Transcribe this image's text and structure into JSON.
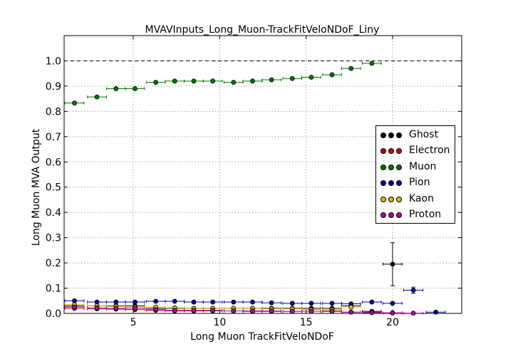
{
  "chart_data": {
    "type": "scatter",
    "title": "MVAVInputs_Long_Muon-TrackFitVeloNDoF_Liny",
    "xlabel": "Long Muon TrackFitVeloNDoF",
    "ylabel": "Long Muon MVA Output",
    "xlim": [
      1,
      24
    ],
    "ylim": [
      0,
      1.1
    ],
    "xticks": [
      5,
      10,
      15,
      20
    ],
    "yticks": [
      0.0,
      0.1,
      0.2,
      0.3,
      0.4,
      0.5,
      0.6,
      0.7,
      0.8,
      0.9,
      1.0
    ],
    "grid": true,
    "reference_line": 1.0,
    "legend_position": "center-right",
    "series": [
      {
        "name": "Ghost",
        "color": "#000000",
        "x": [
          1.6,
          2.9,
          4.0,
          5.1,
          6.3,
          7.4,
          8.5,
          9.6,
          10.8,
          11.9,
          13.0,
          14.2,
          15.3,
          16.5,
          17.6,
          18.8,
          20.0
        ],
        "y": [
          0.03,
          0.03,
          0.03,
          0.03,
          0.02,
          0.02,
          0.02,
          0.02,
          0.02,
          0.02,
          0.02,
          0.02,
          0.02,
          0.02,
          0.03,
          0.008,
          0.195
        ],
        "yerr": [
          0,
          0,
          0,
          0,
          0,
          0,
          0,
          0,
          0,
          0,
          0,
          0,
          0,
          0,
          0,
          0,
          0.085
        ]
      },
      {
        "name": "Electron",
        "color": "#cc0000",
        "x": [
          1.6,
          2.9,
          4.0,
          5.1,
          6.3,
          7.4,
          8.5,
          9.6,
          10.8,
          11.9,
          13.0,
          14.2,
          15.3,
          16.5,
          17.6,
          18.8,
          20.0
        ],
        "y": [
          0.02,
          0.018,
          0.017,
          0.015,
          0.012,
          0.01,
          0.01,
          0.01,
          0.01,
          0.008,
          0.008,
          0.008,
          0.015,
          0.01,
          0.005,
          0.005,
          0.002
        ]
      },
      {
        "name": "Muon",
        "color": "#007700",
        "x": [
          1.6,
          2.9,
          4.0,
          5.1,
          6.3,
          7.4,
          8.5,
          9.6,
          10.8,
          11.9,
          13.0,
          14.2,
          15.3,
          16.5,
          17.6,
          18.8
        ],
        "y": [
          0.833,
          0.857,
          0.89,
          0.89,
          0.915,
          0.92,
          0.92,
          0.92,
          0.915,
          0.92,
          0.925,
          0.93,
          0.935,
          0.945,
          0.97,
          0.99
        ]
      },
      {
        "name": "Pion",
        "color": "#0000aa",
        "x": [
          1.6,
          2.9,
          4.0,
          5.1,
          6.3,
          7.4,
          8.5,
          9.6,
          10.8,
          11.9,
          13.0,
          14.2,
          15.3,
          16.5,
          17.6,
          18.8,
          20.0,
          21.2,
          22.5
        ],
        "y": [
          0.05,
          0.045,
          0.045,
          0.045,
          0.048,
          0.048,
          0.045,
          0.045,
          0.045,
          0.045,
          0.042,
          0.04,
          0.04,
          0.04,
          0.038,
          0.045,
          0.04,
          0.092,
          0.005
        ],
        "yerr": [
          0,
          0,
          0,
          0,
          0,
          0,
          0,
          0,
          0,
          0,
          0,
          0,
          0,
          0,
          0,
          0,
          0,
          0.012,
          0
        ]
      },
      {
        "name": "Kaon",
        "color": "#ddbb00",
        "x": [
          1.6,
          2.9,
          4.0,
          5.1,
          6.3,
          7.4,
          8.5,
          9.6,
          10.8,
          11.9,
          13.0,
          14.2,
          15.3,
          16.5,
          17.6
        ],
        "y": [
          0.035,
          0.03,
          0.028,
          0.025,
          0.025,
          0.022,
          0.02,
          0.02,
          0.02,
          0.02,
          0.018,
          0.018,
          0.015,
          0.015,
          0.025
        ]
      },
      {
        "name": "Proton",
        "color": "#aa00aa",
        "x": [
          1.6,
          2.9,
          4.0,
          5.1,
          6.3,
          7.4,
          8.5,
          9.6,
          10.8,
          11.9,
          13.0,
          14.2,
          15.3,
          16.5,
          17.6,
          18.8,
          20.0,
          21.2
        ],
        "y": [
          0.025,
          0.022,
          0.02,
          0.02,
          0.015,
          0.012,
          0.012,
          0.012,
          0.01,
          0.01,
          0.01,
          0.008,
          0.008,
          0.008,
          0.005,
          0.003,
          0.002,
          0.001
        ]
      }
    ]
  }
}
